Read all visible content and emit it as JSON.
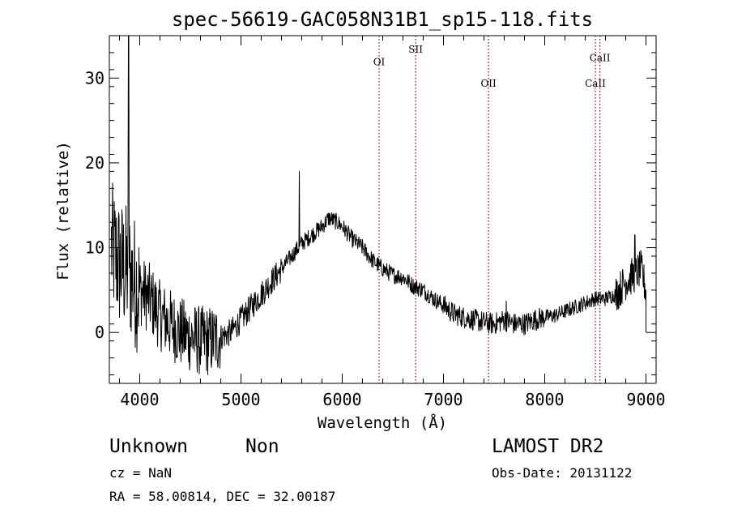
{
  "chart_data": {
    "type": "line",
    "title": "spec-56619-GAC058N31B1_sp15-118.fits",
    "xlabel": "Wavelength (Å)",
    "ylabel": "Flux (relative)",
    "xlim": [
      3700,
      9100
    ],
    "ylim": [
      -6,
      35
    ],
    "xticks": [
      4000,
      5000,
      6000,
      7000,
      8000,
      9000
    ],
    "yticks": [
      0,
      10,
      20,
      30
    ],
    "grid": false,
    "line_color": "#000000",
    "marker_color": "#8b0000",
    "spectrum_trend": [
      {
        "x": 3720,
        "y": 10
      },
      {
        "x": 3800,
        "y": 8
      },
      {
        "x": 3900,
        "y": 7
      },
      {
        "x": 4000,
        "y": 5
      },
      {
        "x": 4100,
        "y": 4
      },
      {
        "x": 4200,
        "y": 2
      },
      {
        "x": 4300,
        "y": 1
      },
      {
        "x": 4400,
        "y": 0
      },
      {
        "x": 4500,
        "y": -0.5
      },
      {
        "x": 4600,
        "y": -1
      },
      {
        "x": 4700,
        "y": -1
      },
      {
        "x": 4800,
        "y": -0.5
      },
      {
        "x": 4900,
        "y": 0
      },
      {
        "x": 5000,
        "y": 1.5
      },
      {
        "x": 5100,
        "y": 3
      },
      {
        "x": 5200,
        "y": 4.5
      },
      {
        "x": 5300,
        "y": 6
      },
      {
        "x": 5400,
        "y": 7.5
      },
      {
        "x": 5500,
        "y": 9
      },
      {
        "x": 5600,
        "y": 10.5
      },
      {
        "x": 5700,
        "y": 11.5
      },
      {
        "x": 5800,
        "y": 12.5
      },
      {
        "x": 5870,
        "y": 13.5
      },
      {
        "x": 5950,
        "y": 13
      },
      {
        "x": 6000,
        "y": 12.5
      },
      {
        "x": 6100,
        "y": 11
      },
      {
        "x": 6200,
        "y": 10
      },
      {
        "x": 6300,
        "y": 8.5
      },
      {
        "x": 6400,
        "y": 7.5
      },
      {
        "x": 6500,
        "y": 6.8
      },
      {
        "x": 6600,
        "y": 6.5
      },
      {
        "x": 6700,
        "y": 5.5
      },
      {
        "x": 6800,
        "y": 5
      },
      {
        "x": 6900,
        "y": 4
      },
      {
        "x": 7000,
        "y": 3.2
      },
      {
        "x": 7100,
        "y": 2.2
      },
      {
        "x": 7200,
        "y": 1.8
      },
      {
        "x": 7300,
        "y": 1.5
      },
      {
        "x": 7400,
        "y": 1.2
      },
      {
        "x": 7500,
        "y": 1
      },
      {
        "x": 7600,
        "y": 1.5
      },
      {
        "x": 7700,
        "y": 1
      },
      {
        "x": 7800,
        "y": 1
      },
      {
        "x": 7900,
        "y": 1.5
      },
      {
        "x": 8000,
        "y": 1.8
      },
      {
        "x": 8100,
        "y": 2
      },
      {
        "x": 8200,
        "y": 2.5
      },
      {
        "x": 8300,
        "y": 3
      },
      {
        "x": 8400,
        "y": 3.5
      },
      {
        "x": 8500,
        "y": 4
      },
      {
        "x": 8600,
        "y": 4
      },
      {
        "x": 8700,
        "y": 4.5
      },
      {
        "x": 8800,
        "y": 6
      },
      {
        "x": 8900,
        "y": 7
      },
      {
        "x": 8950,
        "y": 7.5
      },
      {
        "x": 9000,
        "y": 5
      }
    ],
    "spikes": [
      {
        "x": 3890,
        "y": 35
      },
      {
        "x": 5577,
        "y": 19
      },
      {
        "x": 7620,
        "y": 3.7
      },
      {
        "x": 8890,
        "y": 11.5
      }
    ],
    "line_markers": [
      {
        "label": "OI",
        "x": 6364,
        "label_y": 31.5
      },
      {
        "label": "SII",
        "x": 6725,
        "label_y": 33
      },
      {
        "label": "OII",
        "x": 7445,
        "label_y": 29
      },
      {
        "label": "CaII",
        "x": 8500,
        "label_y": 29
      },
      {
        "label": "CaII",
        "x": 8545,
        "label_y": 32
      }
    ]
  },
  "footer": {
    "class_label": "Unknown",
    "subclass_label": "Non",
    "survey": "LAMOST DR2",
    "redshift": "cz = NaN",
    "obs_date": "Obs-Date: 20131122",
    "coords": "RA =  58.00814, DEC =  32.00187"
  }
}
